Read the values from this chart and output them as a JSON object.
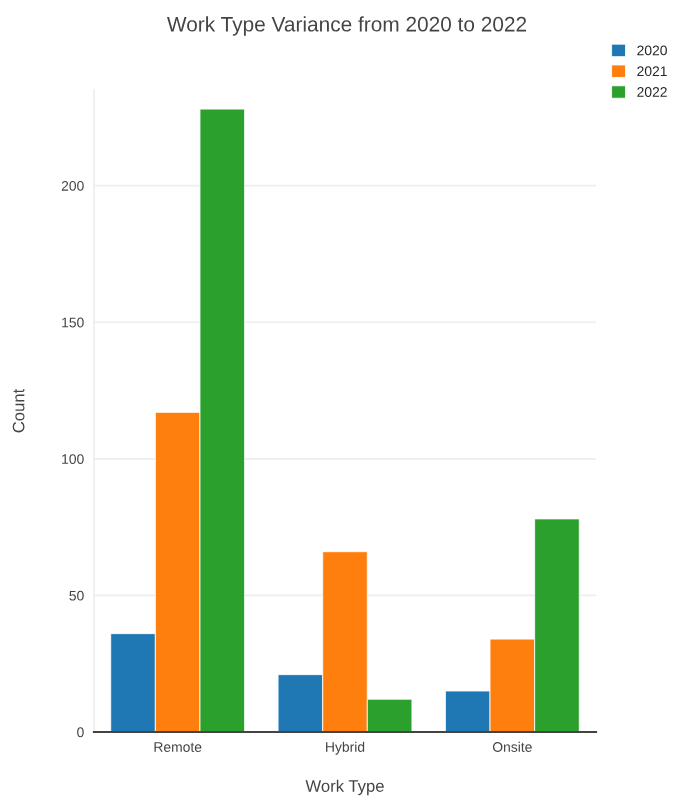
{
  "chart_data": {
    "type": "bar",
    "title": "Work Type Variance from 2020 to 2022",
    "xlabel": "Work Type",
    "ylabel": "Count",
    "categories": [
      "Remote",
      "Hybrid",
      "Onsite"
    ],
    "series": [
      {
        "name": "2020",
        "color": "#1f77b4",
        "values": [
          36,
          21,
          15
        ]
      },
      {
        "name": "2021",
        "color": "#ff7f0e",
        "values": [
          117,
          66,
          34
        ]
      },
      {
        "name": "2022",
        "color": "#2ca02c",
        "values": [
          228,
          12,
          78
        ]
      }
    ],
    "ylim": [
      0,
      235
    ],
    "yticks": [
      0,
      50,
      100,
      150,
      200
    ],
    "grid": "y",
    "legend": "top right"
  }
}
